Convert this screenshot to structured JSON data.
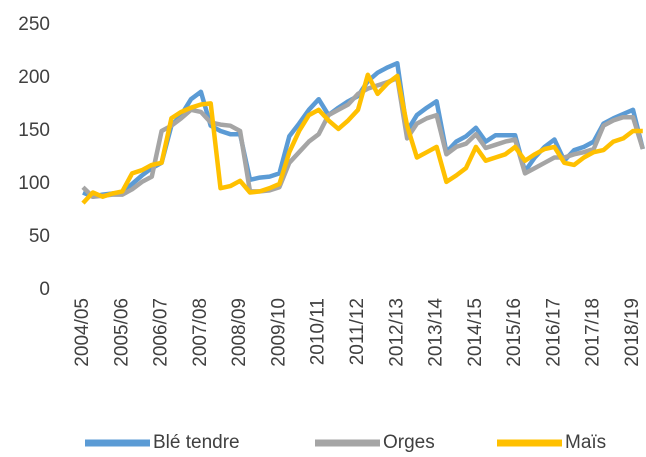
{
  "chart_data": {
    "type": "line",
    "categories": [
      "2004/05",
      null,
      null,
      null,
      "2005/06",
      null,
      null,
      null,
      "2006/07",
      null,
      null,
      null,
      "2007/08",
      null,
      null,
      null,
      "2008/09",
      null,
      null,
      null,
      "2009/10",
      null,
      null,
      null,
      "2010/11",
      null,
      null,
      null,
      "2011/12",
      null,
      null,
      null,
      "2012/13",
      null,
      null,
      null,
      "2013/14",
      null,
      null,
      null,
      "2014/15",
      null,
      null,
      null,
      "2015/16",
      null,
      null,
      null,
      "2016/17",
      null,
      null,
      null,
      "2017/18",
      null,
      null,
      null,
      "2018/19",
      null
    ],
    "series": [
      {
        "name": "Blé tendre",
        "color": "#5b9bd5",
        "values": [
          92,
          88,
          90,
          91,
          92,
          100,
          108,
          115,
          120,
          155,
          165,
          180,
          187,
          155,
          150,
          147,
          147,
          104,
          106,
          107,
          110,
          145,
          157,
          170,
          180,
          165,
          172,
          178,
          183,
          197,
          205,
          210,
          214,
          150,
          165,
          172,
          178,
          130,
          140,
          145,
          153,
          140,
          146,
          146,
          146,
          112,
          125,
          135,
          142,
          122,
          132,
          135,
          140,
          157,
          162,
          166,
          170,
          133
        ]
      },
      {
        "name": "Orges",
        "color": "#a5a5a5",
        "values": [
          97,
          88,
          89,
          90,
          90,
          95,
          102,
          107,
          150,
          155,
          162,
          170,
          168,
          158,
          156,
          155,
          150,
          93,
          93,
          94,
          97,
          120,
          130,
          140,
          147,
          165,
          170,
          175,
          185,
          190,
          193,
          196,
          200,
          143,
          157,
          162,
          165,
          128,
          135,
          138,
          147,
          134,
          137,
          140,
          142,
          110,
          115,
          120,
          125,
          125,
          128,
          130,
          133,
          155,
          160,
          163,
          163,
          133
        ]
      },
      {
        "name": "Maïs",
        "color": "#ffc000",
        "values": [
          82,
          92,
          88,
          91,
          93,
          110,
          113,
          118,
          120,
          162,
          168,
          172,
          175,
          176,
          96,
          98,
          103,
          92,
          93,
          96,
          100,
          130,
          150,
          165,
          170,
          160,
          152,
          160,
          170,
          203,
          185,
          195,
          202,
          155,
          125,
          130,
          135,
          102,
          108,
          115,
          135,
          122,
          125,
          128,
          135,
          122,
          128,
          133,
          135,
          120,
          118,
          125,
          130,
          132,
          140,
          143,
          150,
          150
        ]
      }
    ],
    "ylim": [
      0,
      250
    ],
    "yticks": [
      0,
      50,
      100,
      150,
      200,
      250
    ],
    "legend": "bottom"
  }
}
